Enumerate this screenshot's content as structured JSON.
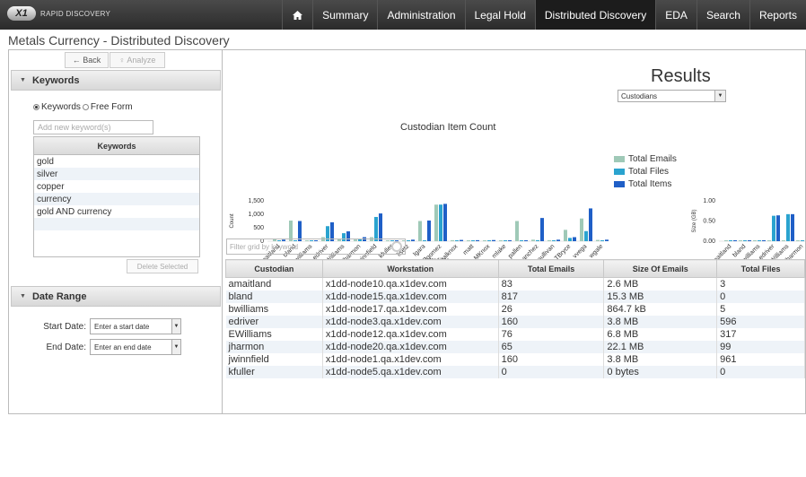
{
  "app": {
    "logo_badge": "X1",
    "logo_text": "RAPID DISCOVERY",
    "page_title": "Metals Currency - Distributed Discovery"
  },
  "nav": {
    "home_icon": "home-icon",
    "items": [
      {
        "label": "Summary"
      },
      {
        "label": "Administration"
      },
      {
        "label": "Legal Hold"
      },
      {
        "label": "Distributed Discovery",
        "active": true
      },
      {
        "label": "EDA"
      },
      {
        "label": "Search"
      },
      {
        "label": "Reports"
      }
    ]
  },
  "toolbar": {
    "back_label": "← Back",
    "analyze_label": "♀ Analyze"
  },
  "keywords_panel": {
    "title": "Keywords",
    "mode_keywords": "Keywords",
    "mode_free_form": "Free Form",
    "input_placeholder": "Add new keyword(s)",
    "grid_header": "Keywords",
    "rows": [
      "gold",
      "silver",
      "copper",
      "currency",
      "gold AND currency"
    ],
    "delete_label": "Delete Selected"
  },
  "date_panel": {
    "title": "Date Range",
    "start_label": "Start Date:",
    "start_placeholder": "Enter a start date",
    "end_label": "End Date:",
    "end_placeholder": "Enter an end date"
  },
  "results": {
    "title": "Results",
    "selected_view": "Custodians",
    "filter_placeholder": "Filter grid by keyword"
  },
  "chart_data": [
    {
      "type": "bar",
      "title": "Custodian Item Count",
      "xlabel": "Custodians",
      "ylabel": "Count",
      "yticks": [
        "1,500",
        "1,000",
        "500",
        "0"
      ],
      "ylim": [
        0,
        1600
      ],
      "categories": [
        "amaitland",
        "bland",
        "bwilliams",
        "edriver",
        "EWilliams",
        "jharmon",
        "jwinnfield",
        "kfuller",
        "lisetz",
        "lgara",
        "lgomez",
        "malknox",
        "matt",
        "MKnox",
        "mlake",
        "pallen",
        "rsanchez",
        "rsullivan",
        "TBryce",
        "vvega",
        "wgale"
      ],
      "series": [
        {
          "name": "Total Emails",
          "color": "#9fc9b7",
          "values": [
            83,
            817,
            26,
            160,
            76,
            65,
            160,
            0,
            30,
            800,
            1450,
            40,
            30,
            35,
            30,
            800,
            60,
            40,
            450,
            900,
            50
          ]
        },
        {
          "name": "Total Files",
          "color": "#2aa3cf",
          "values": [
            3,
            0,
            5,
            596,
            317,
            99,
            961,
            0,
            20,
            5,
            1450,
            10,
            5,
            10,
            5,
            5,
            40,
            10,
            130,
            400,
            30
          ]
        },
        {
          "name": "Total Items",
          "color": "#1f5fc7",
          "values": [
            60,
            800,
            30,
            750,
            390,
            160,
            1100,
            20,
            60,
            820,
            1480,
            50,
            40,
            45,
            35,
            30,
            920,
            60,
            160,
            1300,
            60
          ]
        }
      ],
      "legend_position": "right"
    },
    {
      "type": "bar",
      "ylabel": "Size (GB)",
      "yticks": [
        "1.00",
        "0.50",
        "0.00"
      ],
      "ylim": [
        0,
        1.0
      ],
      "categories": [
        "amaitland",
        "bland",
        "bwilliams",
        "edriver",
        "EWilliams",
        "jharmon"
      ],
      "series": [
        {
          "color": "#9fc9b7",
          "values": [
            0.01,
            0.01,
            0.01,
            0.01,
            0.02,
            0.02
          ]
        },
        {
          "color": "#2aa3cf",
          "values": [
            0.01,
            0.01,
            0.01,
            0.63,
            0.67,
            0.02
          ]
        },
        {
          "color": "#1f5fc7",
          "values": [
            0.01,
            0.01,
            0.01,
            0.64,
            0.67,
            0.02
          ]
        }
      ]
    }
  ],
  "grid": {
    "columns": [
      "Custodian",
      "Workstation",
      "Total Emails",
      "Size Of Emails",
      "Total Files"
    ],
    "rows": [
      [
        "amaitland",
        "x1dd-node10.qa.x1dev.com",
        "83",
        "2.6 MB",
        "3"
      ],
      [
        "bland",
        "x1dd-node15.qa.x1dev.com",
        "817",
        "15.3 MB",
        "0"
      ],
      [
        "bwilliams",
        "x1dd-node17.qa.x1dev.com",
        "26",
        "864.7 kB",
        "5"
      ],
      [
        "edriver",
        "x1dd-node3.qa.x1dev.com",
        "160",
        "3.8 MB",
        "596"
      ],
      [
        "EWilliams",
        "x1dd-node12.qa.x1dev.com",
        "76",
        "6.8 MB",
        "317"
      ],
      [
        "jharmon",
        "x1dd-node20.qa.x1dev.com",
        "65",
        "22.1 MB",
        "99"
      ],
      [
        "jwinnfield",
        "x1dd-node1.qa.x1dev.com",
        "160",
        "3.8 MB",
        "961"
      ],
      [
        "kfuller",
        "x1dd-node5.qa.x1dev.com",
        "0",
        "0 bytes",
        "0"
      ]
    ]
  }
}
